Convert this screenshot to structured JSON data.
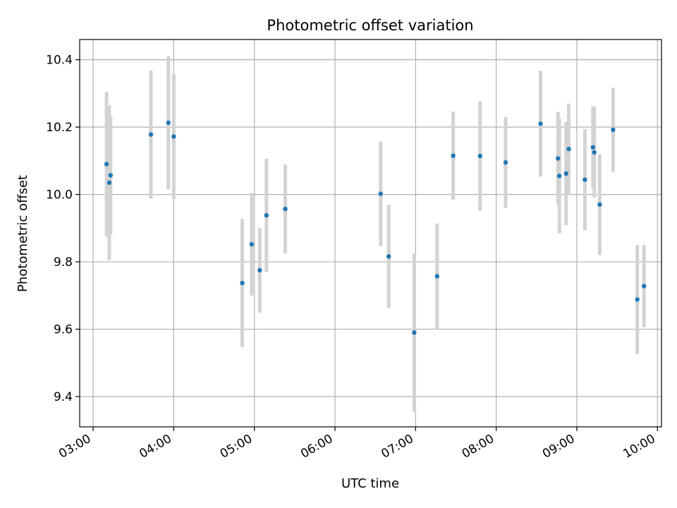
{
  "chart_data": {
    "type": "scatter",
    "title": "Photometric offset variation",
    "xlabel": "UTC time",
    "ylabel": "Photometric offset",
    "x_ticks": [
      "03:00",
      "04:00",
      "05:00",
      "06:00",
      "07:00",
      "08:00",
      "09:00",
      "10:00"
    ],
    "y_ticks": [
      "9.4",
      "9.6",
      "9.8",
      "10.0",
      "10.2",
      "10.4"
    ],
    "xlim": [
      "02:50",
      "10:03"
    ],
    "ylim": [
      9.31,
      10.46
    ],
    "grid": true,
    "marker_color": "#1f77b4",
    "errorbar_color": "#d3d3d3",
    "points": [
      {
        "t": "03:10",
        "y": 10.09,
        "err": 0.215
      },
      {
        "t": "03:12",
        "y": 10.035,
        "err": 0.23
      },
      {
        "t": "03:13",
        "y": 10.057,
        "err": 0.175
      },
      {
        "t": "03:43",
        "y": 10.178,
        "err": 0.19
      },
      {
        "t": "03:56",
        "y": 10.213,
        "err": 0.198
      },
      {
        "t": "04:00",
        "y": 10.172,
        "err": 0.186
      },
      {
        "t": "04:51",
        "y": 9.737,
        "err": 0.19
      },
      {
        "t": "04:58",
        "y": 9.852,
        "err": 0.152
      },
      {
        "t": "05:04",
        "y": 9.775,
        "err": 0.126
      },
      {
        "t": "05:09",
        "y": 9.938,
        "err": 0.168
      },
      {
        "t": "05:23",
        "y": 9.957,
        "err": 0.132
      },
      {
        "t": "06:34",
        "y": 10.002,
        "err": 0.155
      },
      {
        "t": "06:40",
        "y": 9.816,
        "err": 0.153
      },
      {
        "t": "06:59",
        "y": 9.59,
        "err": 0.235
      },
      {
        "t": "07:16",
        "y": 9.757,
        "err": 0.157
      },
      {
        "t": "07:28",
        "y": 10.115,
        "err": 0.131
      },
      {
        "t": "07:48",
        "y": 10.114,
        "err": 0.163
      },
      {
        "t": "08:07",
        "y": 10.095,
        "err": 0.135
      },
      {
        "t": "08:33",
        "y": 10.21,
        "err": 0.157
      },
      {
        "t": "08:46",
        "y": 10.107,
        "err": 0.138
      },
      {
        "t": "08:47",
        "y": 10.055,
        "err": 0.17
      },
      {
        "t": "08:52",
        "y": 10.062,
        "err": 0.153
      },
      {
        "t": "08:54",
        "y": 10.135,
        "err": 0.135
      },
      {
        "t": "09:06",
        "y": 10.044,
        "err": 0.15
      },
      {
        "t": "09:12",
        "y": 10.14,
        "err": 0.122
      },
      {
        "t": "09:13",
        "y": 10.125,
        "err": 0.135
      },
      {
        "t": "09:17",
        "y": 9.97,
        "err": 0.15
      },
      {
        "t": "09:27",
        "y": 10.192,
        "err": 0.125
      },
      {
        "t": "09:45",
        "y": 9.688,
        "err": 0.162
      },
      {
        "t": "09:50",
        "y": 9.728,
        "err": 0.122
      }
    ]
  }
}
